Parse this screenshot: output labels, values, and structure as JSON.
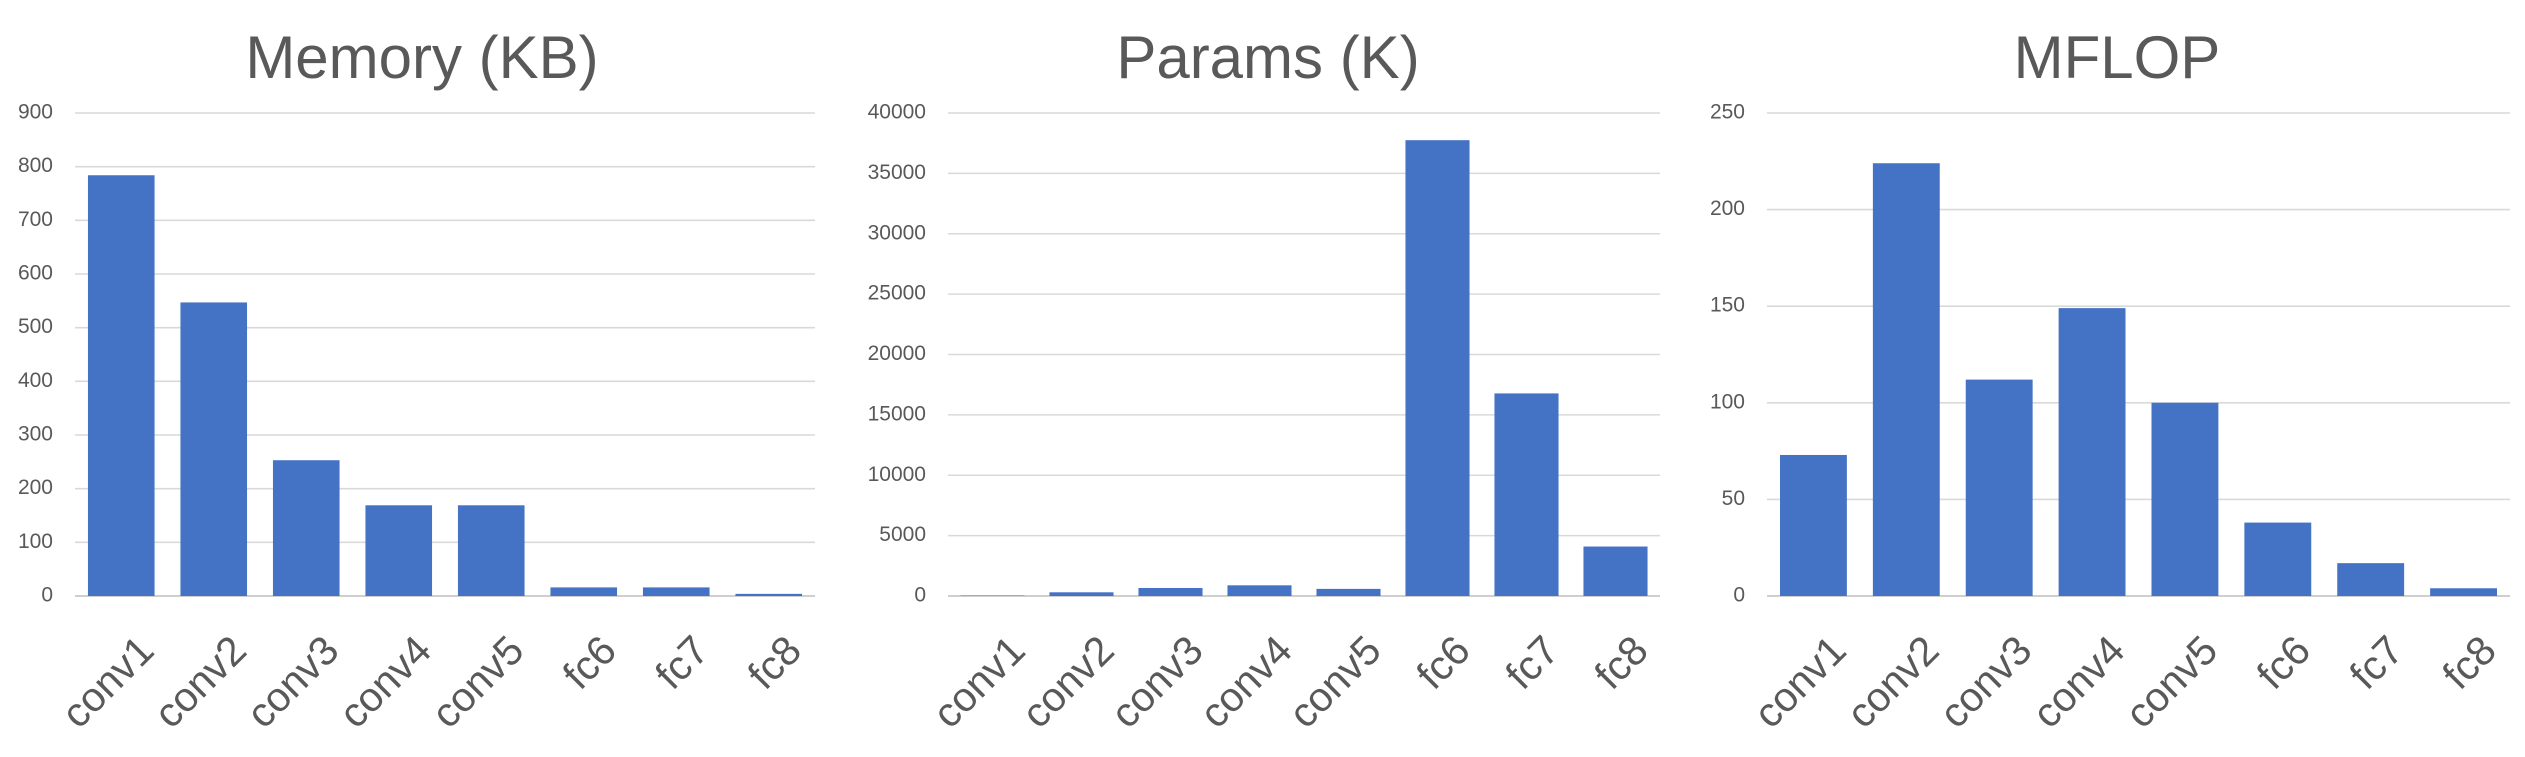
{
  "chart_data": [
    {
      "type": "bar",
      "title": "Memory (KB)",
      "categories": [
        "conv1",
        "conv2",
        "conv3",
        "conv4",
        "conv5",
        "fc6",
        "fc7",
        "fc8"
      ],
      "values": [
        784,
        547,
        253,
        169,
        169,
        16,
        16,
        4
      ],
      "ylim": [
        0,
        900
      ],
      "yticks": [
        0,
        100,
        200,
        300,
        400,
        500,
        600,
        700,
        800,
        900
      ],
      "grid": true,
      "color": "#4472C4"
    },
    {
      "type": "bar",
      "title": "Params (K)",
      "categories": [
        "conv1",
        "conv2",
        "conv3",
        "conv4",
        "conv5",
        "fc6",
        "fc7",
        "fc8"
      ],
      "values": [
        35,
        307,
        664,
        885,
        590,
        37749,
        16777,
        4097
      ],
      "ylim": [
        0,
        40000
      ],
      "yticks": [
        0,
        5000,
        10000,
        15000,
        20000,
        25000,
        30000,
        35000,
        40000
      ],
      "grid": true,
      "color": "#4472C4"
    },
    {
      "type": "bar",
      "title": "MFLOP",
      "categories": [
        "conv1",
        "conv2",
        "conv3",
        "conv4",
        "conv5",
        "fc6",
        "fc7",
        "fc8"
      ],
      "values": [
        73,
        224,
        112,
        149,
        100,
        38,
        17,
        4
      ],
      "ylim": [
        0,
        250
      ],
      "yticks": [
        0,
        50,
        100,
        150,
        200,
        250
      ],
      "grid": true,
      "color": "#4472C4"
    }
  ]
}
